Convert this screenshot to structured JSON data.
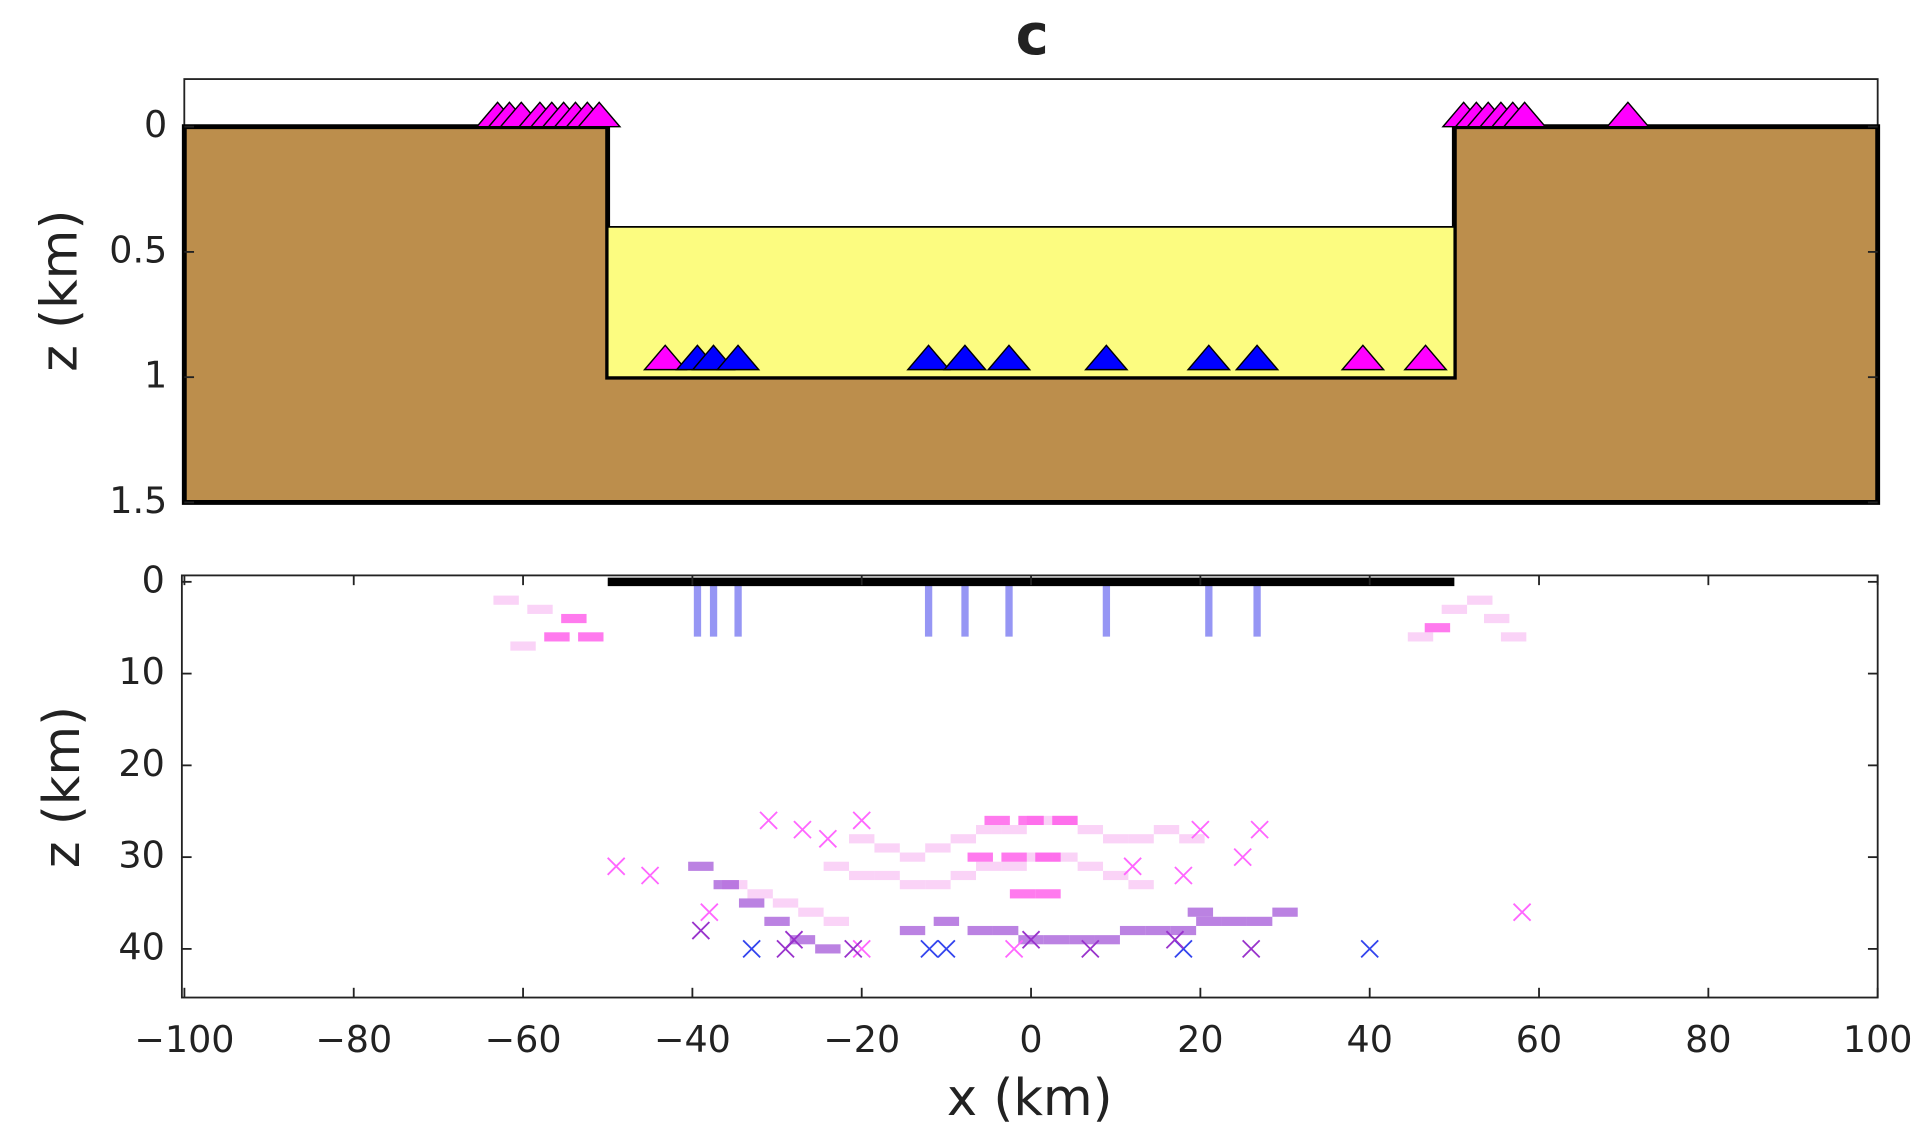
{
  "chart_data": [
    {
      "type": "section",
      "title": "c",
      "ylabel": "z (km)",
      "xlim": [
        -100,
        100
      ],
      "ylim": [
        -0.19,
        1.5
      ],
      "y_inverted": true,
      "yticks": [
        0,
        0.5,
        1,
        1.5
      ],
      "layers": [
        {
          "x": [
            -100,
            -50,
            -50,
            50,
            50,
            100
          ],
          "z": [
            0,
            0,
            1,
            1,
            0,
            0
          ],
          "bottom": 1.5,
          "color": "#bc8e4c"
        },
        {
          "x": [
            -50,
            50
          ],
          "z": [
            0.4,
            0.4
          ],
          "bottom": 1,
          "color": "#fcfc80"
        }
      ],
      "series": [
        {
          "color": "#ff00ff",
          "x": [
            -63,
            -61.6,
            -60.2,
            -58,
            -56.6,
            -55.2,
            -53.8,
            -52.4,
            -51,
            51.1,
            52.6,
            54,
            55.5,
            56.9,
            58.3,
            70.5,
            -43.2,
            39.2,
            46.6
          ],
          "values": [
            0,
            0,
            0,
            0,
            0,
            0,
            0,
            0,
            0,
            0,
            0,
            0,
            0,
            0,
            0,
            0,
            0.97,
            0.97,
            0.97
          ]
        },
        {
          "color": "#0000ff",
          "x": [
            -39.4,
            -37.5,
            -34.6,
            -12.1,
            -7.8,
            -2.6,
            8.9,
            21,
            26.7
          ],
          "values": [
            0.97,
            0.97,
            0.97,
            0.97,
            0.97,
            0.97,
            0.97,
            0.97,
            0.97
          ]
        }
      ]
    },
    {
      "type": "scatter",
      "xlabel": "x (km)",
      "ylabel": "z (km)",
      "xlim": [
        -100.3,
        100
      ],
      "ylim": [
        -0.7,
        45.3
      ],
      "y_inverted": true,
      "xticks": [
        {
          "value": -100,
          "label": "−100"
        },
        {
          "value": -80,
          "label": "−80"
        },
        {
          "value": -60,
          "label": "−60"
        },
        {
          "value": -40,
          "label": "−40"
        },
        {
          "value": -20,
          "label": "−20"
        },
        0,
        20,
        40,
        60,
        80,
        100
      ],
      "yticks": [
        0,
        10,
        20,
        30,
        40
      ],
      "cells": [
        {
          "color": "#f8c4f4",
          "x": [
            -20,
            -17,
            -14,
            -11,
            -8,
            -5,
            -2,
            1,
            4,
            7,
            10,
            13,
            16,
            19,
            -23,
            -20,
            -17,
            -14,
            -11,
            -8,
            -5,
            -2,
            1,
            4,
            7,
            10,
            13,
            -35,
            -32,
            -29,
            -26,
            -23,
            -62,
            -58,
            -60,
            53,
            55,
            57,
            50,
            46
          ],
          "values": [
            28,
            29,
            30,
            29,
            28,
            27,
            27,
            26,
            26,
            27,
            28,
            28,
            27,
            28,
            31,
            32,
            32,
            33,
            33,
            32,
            31,
            31,
            30,
            30,
            31,
            32,
            33,
            33,
            34,
            35,
            36,
            37,
            2,
            3,
            7,
            2,
            4,
            6,
            3,
            6
          ]
        },
        {
          "color": "#ff4ee8",
          "x": [
            -4,
            0,
            4,
            -6,
            -2,
            2,
            -1,
            2,
            -56,
            -54,
            -52,
            48
          ],
          "values": [
            26,
            26,
            26,
            30,
            30,
            30,
            34,
            34,
            6,
            4,
            6,
            5
          ]
        },
        {
          "color": "#a458d8",
          "x": [
            -39,
            -36,
            -33,
            -30,
            -27,
            -24,
            -14,
            -10,
            -6,
            -3,
            0,
            3,
            6,
            9,
            12,
            15,
            18,
            21,
            24,
            27,
            30,
            20
          ],
          "values": [
            31,
            33,
            35,
            37,
            39,
            40,
            38,
            37,
            38,
            38,
            39,
            39,
            39,
            39,
            38,
            38,
            38,
            37,
            37,
            37,
            36,
            36
          ]
        }
      ],
      "series": [
        {
          "color": "#ff66ff",
          "x": [
            -31,
            -27,
            -24,
            -20,
            -49,
            -45,
            -38,
            -20,
            27,
            25,
            58,
            20,
            12,
            18,
            -2
          ],
          "values": [
            26,
            27,
            28,
            26,
            31,
            32,
            36,
            40,
            27,
            30,
            36,
            27,
            31,
            32,
            40
          ]
        },
        {
          "color": "#3344ee",
          "x": [
            -33,
            -12,
            -10,
            18,
            40
          ],
          "values": [
            40,
            40,
            40,
            40,
            40
          ]
        },
        {
          "color": "#9933cc",
          "x": [
            -39,
            -28,
            -29,
            -21,
            0,
            7,
            17,
            26
          ],
          "values": [
            38,
            39,
            40,
            40,
            39,
            40,
            39,
            40
          ]
        }
      ]
    }
  ]
}
